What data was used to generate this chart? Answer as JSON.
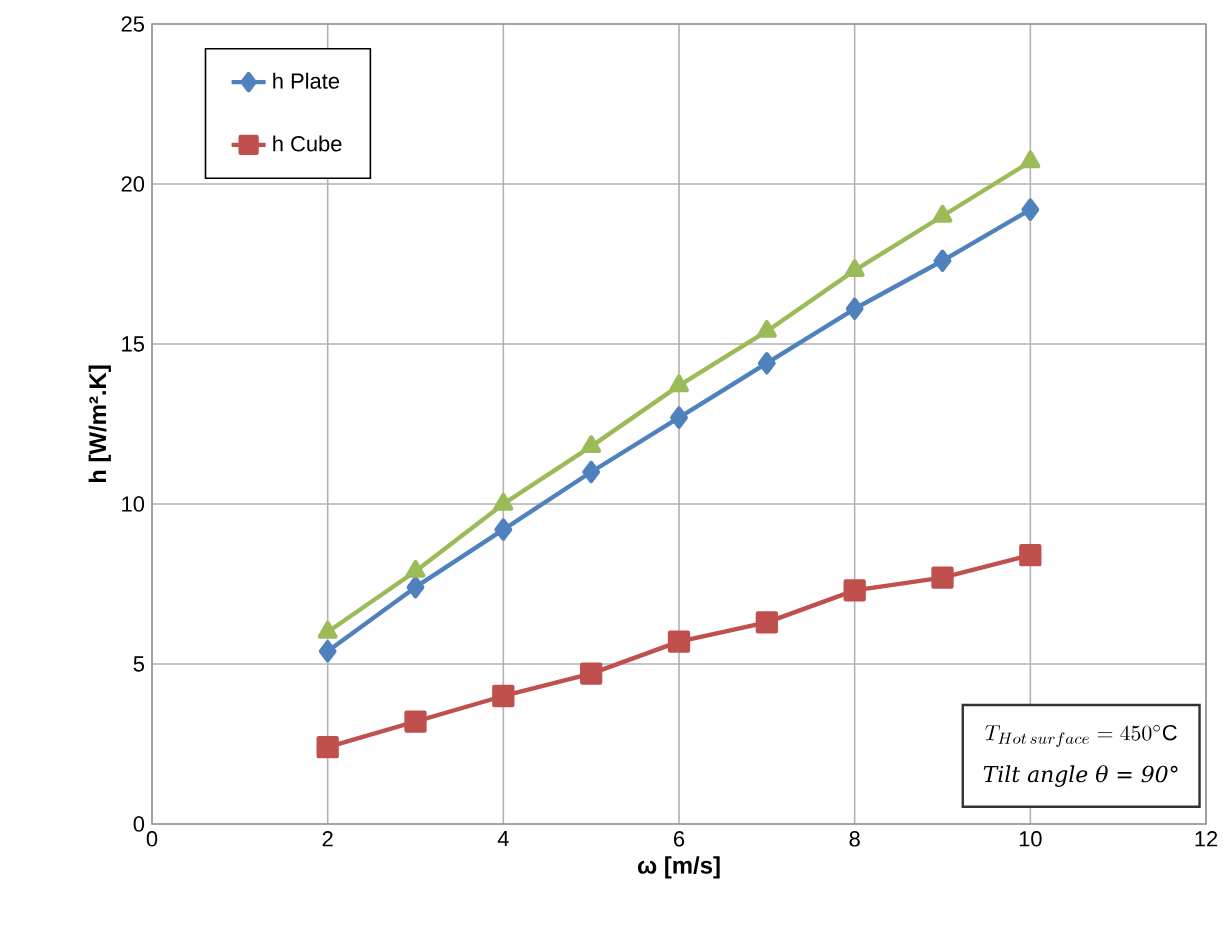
{
  "chart_data": {
    "type": "line",
    "xlabel": "ω  [m/s]",
    "ylabel": "h  [W/m².K]",
    "x": [
      2,
      3,
      4,
      5,
      6,
      7,
      8,
      9,
      10
    ],
    "series": [
      {
        "name": "h Plate",
        "color": "#4f81bd",
        "marker": "diamond",
        "values": [
          5.4,
          7.4,
          9.2,
          11.0,
          12.7,
          14.4,
          16.1,
          17.6,
          19.2
        ]
      },
      {
        "name": "h Cube",
        "color": "#c0504d",
        "marker": "square",
        "values": [
          2.4,
          3.2,
          4.0,
          4.7,
          5.7,
          6.3,
          7.3,
          7.7,
          8.4
        ]
      },
      {
        "color": "#9bbb59",
        "marker": "triangle",
        "values": [
          6.0,
          7.9,
          10.0,
          11.8,
          13.7,
          15.4,
          17.3,
          19.0,
          20.7
        ]
      }
    ],
    "xlim": [
      0,
      12
    ],
    "xticks": [
      0,
      2,
      4,
      6,
      8,
      10,
      12
    ],
    "ylim": [
      0,
      25
    ],
    "yticks": [
      0,
      5,
      10,
      15,
      20,
      25
    ],
    "grid": true,
    "legend": "top left",
    "line_style": "solid",
    "annotations": [
      "T_{Hot\\,surface} = 450^{\\circ}\\mathrm{C}",
      "Tilt angle θ = 90°"
    ]
  }
}
